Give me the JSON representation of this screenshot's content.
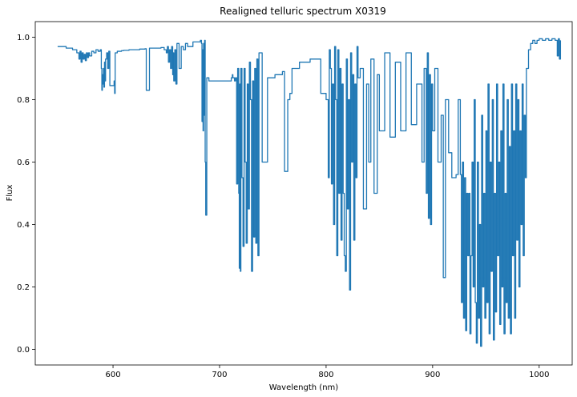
{
  "chart_data": {
    "type": "line",
    "title": "Realigned telluric spectrum X0319",
    "xlabel": "Wavelength (nm)",
    "ylabel": "Flux",
    "xlim": [
      527,
      1031
    ],
    "ylim": [
      -0.05,
      1.05
    ],
    "xticks": [
      600,
      700,
      800,
      900,
      1000
    ],
    "yticks": [
      0.0,
      0.2,
      0.4,
      0.6,
      0.8,
      1.0
    ],
    "grid": false,
    "line_color": "#1f77b4",
    "series": [
      {
        "x": [
          548,
          556,
          562,
          566,
          568,
          569,
          570,
          571,
          572,
          573,
          574,
          575,
          576,
          577,
          578,
          580,
          582,
          584,
          586,
          588,
          589,
          589.5,
          590,
          590.5,
          591,
          591.5,
          592,
          592.5,
          593,
          594,
          595,
          596,
          597,
          598,
          600,
          601,
          601.5,
          602,
          603,
          604,
          606,
          608,
          610,
          612,
          615,
          620,
          625,
          628,
          630,
          631,
          631.2,
          634,
          634.2,
          640,
          645,
          648,
          650,
          651,
          652,
          653,
          654,
          655,
          656,
          656.3,
          657,
          658,
          659,
          660,
          662,
          664,
          666,
          668,
          670,
          675,
          680,
          682,
          683,
          683.5,
          684,
          684.5,
          685,
          685.5,
          686,
          686.5,
          687,
          688,
          690,
          695,
          698,
          700,
          705,
          708,
          710,
          711,
          712,
          712.5,
          713,
          714,
          715,
          716,
          717,
          718,
          718.5,
          719,
          719.5,
          720,
          721,
          722,
          723,
          724,
          725,
          726,
          727,
          728,
          729,
          730,
          731,
          732,
          733,
          734,
          735,
          736,
          737,
          740,
          745,
          750,
          752,
          755,
          758,
          759,
          760,
          761,
          762,
          763,
          764,
          766,
          768,
          770,
          775,
          780,
          785,
          790,
          795,
          800,
          802,
          803,
          804,
          805,
          806,
          807,
          808,
          809,
          810,
          811,
          812,
          813,
          814,
          815,
          816,
          817,
          818,
          819,
          820,
          821,
          822,
          823,
          824,
          825,
          826,
          827,
          828,
          829,
          830,
          832,
          835,
          838,
          840,
          842,
          845,
          848,
          850,
          855,
          860,
          865,
          870,
          875,
          880,
          885,
          890,
          892,
          894,
          895,
          896,
          897,
          898,
          899,
          900,
          902,
          905,
          908,
          910,
          912,
          915,
          918,
          920,
          922,
          924,
          926,
          927,
          928,
          929,
          930,
          931,
          932,
          933,
          934,
          935,
          936,
          937,
          938,
          939,
          940,
          941,
          942,
          943,
          944,
          945,
          946,
          947,
          948,
          949,
          950,
          951,
          952,
          953,
          954,
          955,
          956,
          957,
          958,
          959,
          960,
          961,
          962,
          963,
          964,
          965,
          966,
          967,
          968,
          969,
          970,
          971,
          972,
          973,
          974,
          975,
          976,
          977,
          978,
          979,
          980,
          981,
          982,
          983,
          984,
          985,
          986,
          987,
          988,
          990,
          992,
          994,
          996,
          998,
          1000,
          1003,
          1006,
          1009,
          1012,
          1015,
          1017,
          1018,
          1019,
          1020
        ],
        "y": [
          0.97,
          0.965,
          0.96,
          0.95,
          0.93,
          0.955,
          0.92,
          0.95,
          0.93,
          0.945,
          0.925,
          0.95,
          0.935,
          0.95,
          0.94,
          0.955,
          0.95,
          0.96,
          0.955,
          0.96,
          0.9,
          0.83,
          0.88,
          0.85,
          0.9,
          0.84,
          0.92,
          0.86,
          0.93,
          0.95,
          0.9,
          0.955,
          0.845,
          0.845,
          0.845,
          0.86,
          0.82,
          0.95,
          0.95,
          0.955,
          0.955,
          0.957,
          0.958,
          0.958,
          0.96,
          0.96,
          0.962,
          0.962,
          0.963,
          0.963,
          0.83,
          0.83,
          0.965,
          0.965,
          0.967,
          0.96,
          0.95,
          0.97,
          0.92,
          0.96,
          0.9,
          0.97,
          0.88,
          0.95,
          0.86,
          0.96,
          0.85,
          0.98,
          0.9,
          0.97,
          0.96,
          0.98,
          0.97,
          0.985,
          0.985,
          0.99,
          0.98,
          0.73,
          0.96,
          0.7,
          0.98,
          0.75,
          0.99,
          0.6,
          0.43,
          0.87,
          0.86,
          0.86,
          0.86,
          0.86,
          0.86,
          0.86,
          0.86,
          0.87,
          0.88,
          0.87,
          0.87,
          0.86,
          0.87,
          0.53,
          0.9,
          0.5,
          0.26,
          0.85,
          0.25,
          0.9,
          0.55,
          0.33,
          0.9,
          0.6,
          0.34,
          0.85,
          0.45,
          0.92,
          0.8,
          0.25,
          0.86,
          0.36,
          0.9,
          0.34,
          0.93,
          0.3,
          0.95,
          0.6,
          0.87,
          0.87,
          0.88,
          0.88,
          0.88,
          0.89,
          0.89,
          0.57,
          0.57,
          0.57,
          0.8,
          0.82,
          0.9,
          0.9,
          0.92,
          0.92,
          0.93,
          0.93,
          0.82,
          0.8,
          0.55,
          0.96,
          0.9,
          0.53,
          0.85,
          0.4,
          0.97,
          0.8,
          0.3,
          0.96,
          0.5,
          0.9,
          0.35,
          0.85,
          0.5,
          0.3,
          0.25,
          0.93,
          0.45,
          0.8,
          0.19,
          0.95,
          0.6,
          0.88,
          0.35,
          0.85,
          0.55,
          0.97,
          0.87,
          0.9,
          0.45,
          0.85,
          0.6,
          0.93,
          0.5,
          0.88,
          0.7,
          0.95,
          0.68,
          0.92,
          0.7,
          0.95,
          0.72,
          0.85,
          0.6,
          0.9,
          0.5,
          0.95,
          0.42,
          0.88,
          0.4,
          0.85,
          0.7,
          0.9,
          0.6,
          0.75,
          0.23,
          0.8,
          0.63,
          0.55,
          0.55,
          0.56,
          0.8,
          0.56,
          0.15,
          0.6,
          0.1,
          0.55,
          0.06,
          0.5,
          0.3,
          0.5,
          0.05,
          0.3,
          0.6,
          0.2,
          0.8,
          0.15,
          0.02,
          0.6,
          0.1,
          0.4,
          0.01,
          0.75,
          0.2,
          0.5,
          0.1,
          0.7,
          0.15,
          0.85,
          0.05,
          0.6,
          0.25,
          0.8,
          0.03,
          0.5,
          0.12,
          0.85,
          0.3,
          0.6,
          0.08,
          0.7,
          0.2,
          0.85,
          0.05,
          0.5,
          0.15,
          0.8,
          0.1,
          0.65,
          0.05,
          0.85,
          0.3,
          0.7,
          0.1,
          0.85,
          0.35,
          0.8,
          0.2,
          0.7,
          0.4,
          0.85,
          0.3,
          0.75,
          0.55,
          0.9,
          0.96,
          0.98,
          0.99,
          0.98,
          0.99,
          0.995,
          0.99,
          0.995,
          0.99,
          0.995,
          0.99,
          0.94,
          0.995,
          0.93,
          0.99
        ]
      }
    ]
  }
}
